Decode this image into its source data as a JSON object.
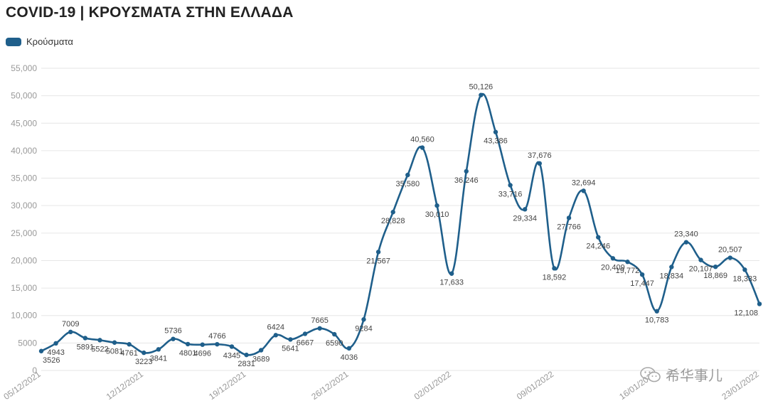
{
  "title": "COVID-19 | ΚΡΟΥΣΜΑΤΑ ΣΤΗΝ ΕΛΛΑΔΑ",
  "legend": {
    "label": "Κρούσματα"
  },
  "colors": {
    "line": "#1f5f8b",
    "grid": "#e6e6e6",
    "axis_text": "#999999",
    "label_text": "#444444"
  },
  "watermark": {
    "text": "希华事儿",
    "icon": "wechat-icon"
  },
  "chart_data": {
    "type": "line",
    "title": "COVID-19 | ΚΡΟΥΣΜΑΤΑ ΣΤΗΝ ΕΛΛΑΔΑ",
    "xlabel": "",
    "ylabel": "",
    "ylim": [
      0,
      55000
    ],
    "yticks": [
      0,
      5000,
      10000,
      15000,
      20000,
      25000,
      30000,
      35000,
      40000,
      45000,
      50000,
      55000
    ],
    "ytick_labels": [
      "0",
      "5000",
      "10,000",
      "15,000",
      "20,000",
      "25,000",
      "30,000",
      "35,000",
      "40,000",
      "45,000",
      "50,000",
      "55,000"
    ],
    "xtick_labels": [
      "05/12/2021",
      "12/12/2021",
      "19/12/2021",
      "26/12/2021",
      "02/01/2022",
      "09/01/2022",
      "16/01/2022",
      "23/01/2022"
    ],
    "grid": true,
    "legend_position": "top-left",
    "series": [
      {
        "name": "Κρούσματα",
        "values": [
          3526,
          4943,
          7009,
          5891,
          5522,
          5081,
          4761,
          3223,
          3841,
          5736,
          4801,
          4696,
          4766,
          4345,
          2831,
          3689,
          6424,
          5641,
          6667,
          7665,
          6590,
          4036,
          9284,
          21567,
          28828,
          35580,
          40560,
          30010,
          17633,
          36246,
          50126,
          43386,
          33716,
          29334,
          37676,
          18592,
          27766,
          32694,
          24246,
          20409,
          19772,
          17447,
          10783,
          18834,
          23340,
          20107,
          18869,
          20507,
          18333,
          12108
        ],
        "labels": [
          "3526",
          "4943",
          "7009",
          "5891",
          "5522",
          "5081",
          "4761",
          "3223",
          "3841",
          "5736",
          "4801",
          "4696",
          "4766",
          "4345",
          "2831",
          "3689",
          "6424",
          "5641",
          "6667",
          "7665",
          "6590",
          "4036",
          "9284",
          "21,567",
          "28,828",
          "35,580",
          "40,560",
          "30,010",
          "17,633",
          "36,246",
          "50,126",
          "43,386",
          "33,716",
          "29,334",
          "37,676",
          "18,592",
          "27,766",
          "32,694",
          "24,246",
          "20,409",
          "19,772",
          "17,447",
          "10,783",
          "18,834",
          "23,340",
          "20,107",
          "18,869",
          "20,507",
          "18,333",
          "12,108"
        ]
      }
    ]
  }
}
